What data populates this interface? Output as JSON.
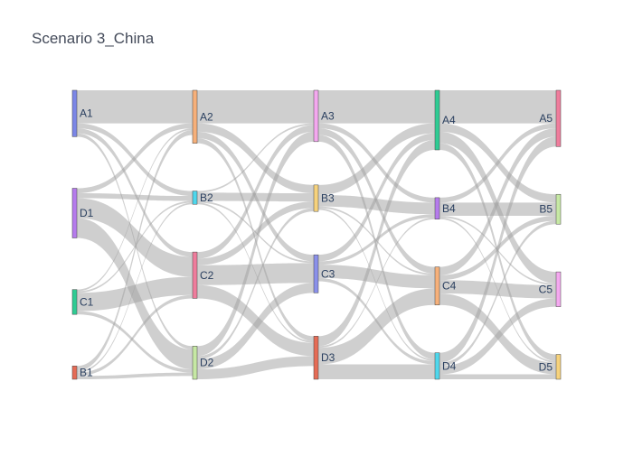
{
  "title": "Scenario 3_China",
  "colors": {
    "link": "#a0a0a0"
  },
  "columns": [
    [
      "A1",
      "D1",
      "C1",
      "B1"
    ],
    [
      "A2",
      "B2",
      "C2",
      "D2"
    ],
    [
      "A3",
      "B3",
      "C3",
      "D3"
    ],
    [
      "A4",
      "B4",
      "C4",
      "D4"
    ],
    [
      "A5",
      "B5",
      "C5",
      "D5"
    ]
  ],
  "nodes": [
    {
      "id": "A1",
      "label": "A1",
      "color": "#7b86e6"
    },
    {
      "id": "D1",
      "label": "D1",
      "color": "#b57bec"
    },
    {
      "id": "C1",
      "label": "C1",
      "color": "#2fcb93"
    },
    {
      "id": "B1",
      "label": "B1",
      "color": "#e56b55"
    },
    {
      "id": "A2",
      "label": "A2",
      "color": "#f6b07a"
    },
    {
      "id": "B2",
      "label": "B2",
      "color": "#4fd7ec"
    },
    {
      "id": "C2",
      "label": "C2",
      "color": "#ef7c9c"
    },
    {
      "id": "D2",
      "label": "D2",
      "color": "#c6e8a4"
    },
    {
      "id": "A3",
      "label": "A3",
      "color": "#f4a8ef"
    },
    {
      "id": "B3",
      "label": "B3",
      "color": "#f6d27c"
    },
    {
      "id": "C3",
      "label": "C3",
      "color": "#8a90ea"
    },
    {
      "id": "D3",
      "label": "D3",
      "color": "#e56b55"
    },
    {
      "id": "A4",
      "label": "A4",
      "color": "#2fcb93"
    },
    {
      "id": "B4",
      "label": "B4",
      "color": "#b57bec"
    },
    {
      "id": "C4",
      "label": "C4",
      "color": "#f6b07a"
    },
    {
      "id": "D4",
      "label": "D4",
      "color": "#4fd7ec"
    },
    {
      "id": "A5",
      "label": "A5",
      "color": "#ef7c9c"
    },
    {
      "id": "B5",
      "label": "B5",
      "color": "#c6e8a4"
    },
    {
      "id": "C5",
      "label": "C5",
      "color": "#f4a8ef"
    },
    {
      "id": "D5",
      "label": "D5",
      "color": "#f6d27c"
    }
  ],
  "links": [
    [
      "A1",
      "A2",
      20
    ],
    [
      "A1",
      "B2",
      3
    ],
    [
      "A1",
      "C2",
      3
    ],
    [
      "A1",
      "D2",
      2
    ],
    [
      "D1",
      "A2",
      3
    ],
    [
      "D1",
      "B2",
      3
    ],
    [
      "D1",
      "C2",
      12
    ],
    [
      "D1",
      "D2",
      12
    ],
    [
      "C1",
      "A2",
      1
    ],
    [
      "C1",
      "B2",
      1
    ],
    [
      "C1",
      "C2",
      11
    ],
    [
      "C1",
      "D2",
      2
    ],
    [
      "B1",
      "A2",
      3
    ],
    [
      "B1",
      "B2",
      1
    ],
    [
      "B1",
      "C2",
      2
    ],
    [
      "B1",
      "D2",
      2
    ],
    [
      "A2",
      "A3",
      20
    ],
    [
      "A2",
      "B3",
      5
    ],
    [
      "A2",
      "C3",
      4
    ],
    [
      "A2",
      "D3",
      3
    ],
    [
      "B2",
      "A3",
      1
    ],
    [
      "B2",
      "B3",
      5
    ],
    [
      "B2",
      "C3",
      1
    ],
    [
      "B2",
      "D3",
      1
    ],
    [
      "C2",
      "A3",
      4
    ],
    [
      "C2",
      "B3",
      4
    ],
    [
      "C2",
      "C3",
      12
    ],
    [
      "C2",
      "D3",
      8
    ],
    [
      "D2",
      "A3",
      6
    ],
    [
      "D2",
      "B3",
      2
    ],
    [
      "D2",
      "C3",
      6
    ],
    [
      "D2",
      "D3",
      6
    ],
    [
      "A3",
      "A4",
      20
    ],
    [
      "A3",
      "B4",
      3
    ],
    [
      "A3",
      "C4",
      4
    ],
    [
      "A3",
      "D4",
      4
    ],
    [
      "B3",
      "A4",
      6
    ],
    [
      "B3",
      "B4",
      7
    ],
    [
      "B3",
      "C4",
      1
    ],
    [
      "B3",
      "D4",
      1
    ],
    [
      "C3",
      "A4",
      4
    ],
    [
      "C3",
      "B4",
      2
    ],
    [
      "C3",
      "C4",
      8
    ],
    [
      "C3",
      "D4",
      2
    ],
    [
      "D3",
      "A4",
      6
    ],
    [
      "D3",
      "B4",
      1
    ],
    [
      "D3",
      "C4",
      10
    ],
    [
      "D3",
      "D4",
      9
    ],
    [
      "A4",
      "A5",
      20
    ],
    [
      "A4",
      "B5",
      5
    ],
    [
      "A4",
      "C5",
      7
    ],
    [
      "A4",
      "D5",
      4
    ],
    [
      "B4",
      "A5",
      3
    ],
    [
      "B4",
      "B5",
      8
    ],
    [
      "B4",
      "C5",
      1
    ],
    [
      "B4",
      "D5",
      1
    ],
    [
      "C4",
      "A5",
      5
    ],
    [
      "C4",
      "B5",
      3
    ],
    [
      "C4",
      "C5",
      8
    ],
    [
      "C4",
      "D5",
      7
    ],
    [
      "D4",
      "A5",
      6
    ],
    [
      "D4",
      "B5",
      2
    ],
    [
      "D4",
      "C5",
      5
    ],
    [
      "D4",
      "D5",
      3
    ]
  ]
}
